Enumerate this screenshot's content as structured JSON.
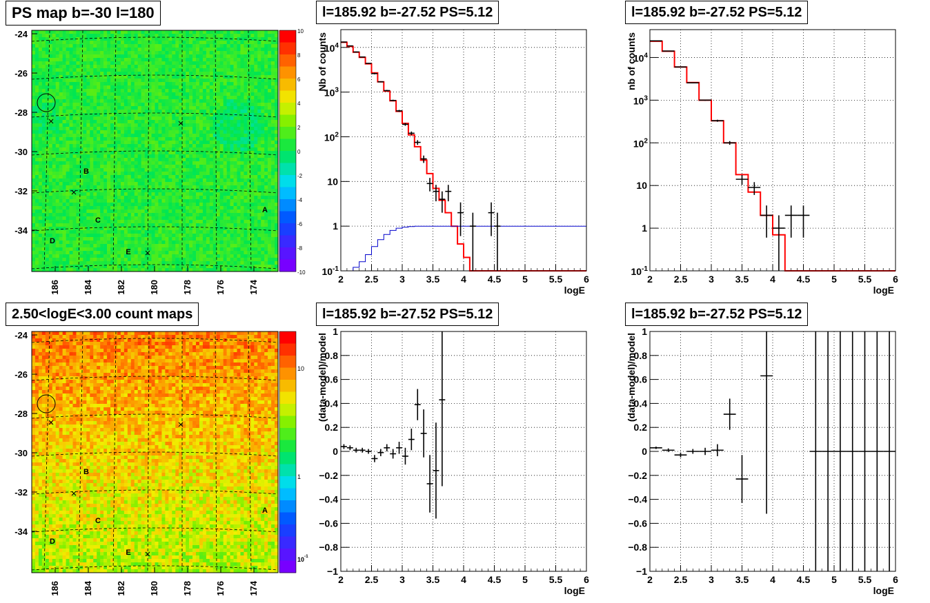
{
  "panels": {
    "map_ps_title": "PS map b=-30 l=180",
    "map_counts_title": "2.50<logE<3.00 count maps",
    "spec1_title": "l=185.92 b=-27.52 PS=5.12",
    "spec2_title": "l=185.92 b=-27.52 PS=5.12",
    "res1_title": "l=185.92 b=-27.52 PS=5.12",
    "res2_title": "l=185.92 b=-27.52 PS=5.12"
  },
  "colors": {
    "model": "#ff0000",
    "background_model": "#0000cc",
    "data": "#000000",
    "grid": "#000000"
  },
  "chart_data": [
    {
      "id": "ps_map",
      "type": "heatmap",
      "title": "PS map b=-30 l=180",
      "colorscale": "rainbow",
      "x_tick_labels": [
        "186",
        "184",
        "182",
        "180",
        "178",
        "176",
        "174"
      ],
      "y_tick_labels": [
        "-24",
        "-26",
        "-28",
        "-30",
        "-32",
        "-34"
      ],
      "colorbar_labels": [
        "10",
        "8",
        "6",
        "4",
        "2",
        "0",
        "-2",
        "-4",
        "-6",
        "-8",
        "-10"
      ],
      "colorbar_range": [
        -10,
        10
      ],
      "source_labels": [
        "A",
        "B",
        "C",
        "D",
        "E"
      ],
      "markers": [
        "x",
        "x",
        "x",
        "x"
      ],
      "circled_source": "l=185.92 b=-27.52"
    },
    {
      "id": "count_map",
      "type": "heatmap",
      "title": "2.50<logE<3.00 count maps",
      "colorscale": "rainbow-log",
      "x_tick_labels": [
        "186",
        "184",
        "182",
        "180",
        "178",
        "176",
        "174"
      ],
      "y_tick_labels": [
        "-24",
        "-26",
        "-28",
        "-30",
        "-32",
        "-34"
      ],
      "colorbar_labels": [
        "10",
        "1"
      ],
      "colorbar_minor_label": {
        "base": "10",
        "exp": "-1"
      },
      "source_labels": [
        "A",
        "B",
        "C",
        "D",
        "E"
      ]
    },
    {
      "id": "spectrum_fine",
      "type": "line",
      "title": "l=185.92 b=-27.52 PS=5.12",
      "xlabel": "logE",
      "ylabel": "Nb of counts",
      "xlim": [
        2,
        6
      ],
      "ylog": true,
      "ylim": [
        0.1,
        25000
      ],
      "x_ticks": [
        "2",
        "2.5",
        "3",
        "3.5",
        "4",
        "4.5",
        "5",
        "5.5",
        "6"
      ],
      "y_ticks": [
        {
          "value": 0.1,
          "base": "10",
          "exp": "-1"
        },
        {
          "value": 1,
          "label": "1"
        },
        {
          "value": 10,
          "label": "10"
        },
        {
          "value": 100,
          "base": "10",
          "exp": "2"
        },
        {
          "value": 1000,
          "base": "10",
          "exp": "3"
        },
        {
          "value": 10000,
          "base": "10",
          "exp": "4"
        }
      ],
      "model_edges": [
        2,
        2.1,
        2.2,
        2.3,
        2.4,
        2.5,
        2.6,
        2.7,
        2.8,
        2.9,
        3,
        3.1,
        3.2,
        3.3,
        3.4,
        3.5,
        3.6,
        3.7,
        3.8,
        3.9,
        4,
        4.1,
        4.2,
        4.3,
        4.4,
        4.5,
        4.6,
        4.7,
        4.8,
        4.9,
        5,
        5.1,
        5.2,
        5.3,
        5.4,
        5.5,
        5.6,
        5.7,
        5.8,
        5.9,
        6
      ],
      "model_values": [
        13000,
        10500,
        7800,
        6000,
        4300,
        2700,
        1700,
        1050,
        640,
        370,
        200,
        110,
        60,
        30,
        15,
        7,
        3.8,
        2,
        1,
        0.4,
        0.2,
        0.1,
        0.1,
        0.1,
        0.1,
        0.1,
        0.1,
        0.1,
        0.1,
        0.1,
        0.1,
        0.1,
        0.1,
        0.1,
        0.1,
        0.1,
        0.1,
        0.1,
        0.1,
        0.1
      ],
      "background_values": [
        0.1,
        0.1,
        0.12,
        0.16,
        0.23,
        0.35,
        0.5,
        0.65,
        0.8,
        0.9,
        0.95,
        0.98,
        1,
        1,
        1,
        1,
        1,
        1,
        1,
        1,
        1,
        1,
        1,
        1,
        1,
        1,
        1,
        1,
        1,
        1,
        1,
        1,
        1,
        1,
        1,
        1,
        1,
        1,
        1,
        1
      ],
      "data_points": [
        {
          "x": 2.05,
          "y": 13200,
          "lo": 12900,
          "hi": 13500
        },
        {
          "x": 2.15,
          "y": 10800,
          "lo": 10600,
          "hi": 11000
        },
        {
          "x": 2.25,
          "y": 7900,
          "lo": 7700,
          "hi": 8100
        },
        {
          "x": 2.35,
          "y": 6100,
          "lo": 5950,
          "hi": 6250
        },
        {
          "x": 2.45,
          "y": 4400,
          "lo": 4300,
          "hi": 4500
        },
        {
          "x": 2.55,
          "y": 2600,
          "lo": 2500,
          "hi": 2700
        },
        {
          "x": 2.65,
          "y": 1700,
          "lo": 1650,
          "hi": 1750
        },
        {
          "x": 2.75,
          "y": 1080,
          "lo": 1040,
          "hi": 1120
        },
        {
          "x": 2.85,
          "y": 650,
          "lo": 625,
          "hi": 675
        },
        {
          "x": 2.95,
          "y": 380,
          "lo": 360,
          "hi": 400
        },
        {
          "x": 3.05,
          "y": 190,
          "lo": 176,
          "hi": 204
        },
        {
          "x": 3.15,
          "y": 120,
          "lo": 109,
          "hi": 131
        },
        {
          "x": 3.25,
          "y": 75,
          "lo": 66,
          "hi": 84
        },
        {
          "x": 3.35,
          "y": 32,
          "lo": 26,
          "hi": 38
        },
        {
          "x": 3.45,
          "y": 9,
          "lo": 6,
          "hi": 12
        },
        {
          "x": 3.55,
          "y": 6,
          "lo": 3.6,
          "hi": 8.4
        },
        {
          "x": 3.65,
          "y": 4,
          "lo": 2,
          "hi": 6
        },
        {
          "x": 3.75,
          "y": 6,
          "lo": 3.6,
          "hi": 8.4
        },
        {
          "x": 3.95,
          "y": 2,
          "lo": 0.6,
          "hi": 3.4
        },
        {
          "x": 4.15,
          "y": 1,
          "lo": 0.1,
          "hi": 2
        },
        {
          "x": 4.45,
          "y": 2,
          "lo": 0.6,
          "hi": 3.4
        },
        {
          "x": 4.55,
          "y": 1,
          "lo": 0.1,
          "hi": 2
        }
      ],
      "data_binwidth": 0.1
    },
    {
      "id": "spectrum_coarse",
      "type": "line",
      "title": "l=185.92 b=-27.52 PS=5.12",
      "xlabel": "logE",
      "ylabel": "nb of counts",
      "xlim": [
        2,
        6
      ],
      "ylog": true,
      "ylim": [
        0.1,
        45000
      ],
      "x_ticks": [
        "2",
        "2.5",
        "3",
        "3.5",
        "4",
        "4.5",
        "5",
        "5.5",
        "6"
      ],
      "y_ticks": [
        {
          "value": 0.1,
          "base": "10",
          "exp": "-1"
        },
        {
          "value": 1,
          "label": "1"
        },
        {
          "value": 10,
          "label": "10"
        },
        {
          "value": 100,
          "base": "10",
          "exp": "2"
        },
        {
          "value": 1000,
          "base": "10",
          "exp": "3"
        },
        {
          "value": 10000,
          "base": "10",
          "exp": "4"
        }
      ],
      "model_edges": [
        2,
        2.2,
        2.4,
        2.6,
        2.8,
        3,
        3.2,
        3.4,
        3.6,
        3.8,
        4,
        4.2,
        4.4,
        4.6,
        4.8,
        5,
        5.2,
        5.4,
        5.6,
        5.8,
        6
      ],
      "model_values": [
        24000,
        14000,
        6000,
        2600,
        1000,
        330,
        100,
        18,
        7,
        2,
        0.7,
        0.1,
        0.1,
        0.1,
        0.1,
        0.1,
        0.1,
        0.1,
        0.1,
        0.1
      ],
      "data_points": [
        {
          "x": 2.1,
          "y": 24500,
          "lo": 24200,
          "hi": 24800
        },
        {
          "x": 2.3,
          "y": 14200,
          "lo": 14000,
          "hi": 14400
        },
        {
          "x": 2.5,
          "y": 6000,
          "lo": 5900,
          "hi": 6100
        },
        {
          "x": 2.7,
          "y": 2550,
          "lo": 2500,
          "hi": 2600
        },
        {
          "x": 2.9,
          "y": 1000,
          "lo": 968,
          "hi": 1032
        },
        {
          "x": 3.1,
          "y": 330,
          "lo": 312,
          "hi": 348
        },
        {
          "x": 3.3,
          "y": 100,
          "lo": 90,
          "hi": 110
        },
        {
          "x": 3.5,
          "y": 14,
          "lo": 10.3,
          "hi": 17.7
        },
        {
          "x": 3.7,
          "y": 9,
          "lo": 6,
          "hi": 12
        },
        {
          "x": 3.9,
          "y": 2,
          "lo": 0.6,
          "hi": 3.4
        },
        {
          "x": 4.1,
          "y": 1,
          "lo": 0.1,
          "hi": 2
        },
        {
          "x": 4.3,
          "y": 2,
          "lo": 0.6,
          "hi": 3.4
        },
        {
          "x": 4.5,
          "y": 2,
          "lo": 0.6,
          "hi": 3.4
        }
      ],
      "data_binwidth": 0.2
    },
    {
      "id": "residual_fine",
      "type": "scatter",
      "title": "l=185.92 b=-27.52 PS=5.12",
      "xlabel": "logE",
      "ylabel": "(data-model)/model",
      "xlim": [
        2,
        6
      ],
      "ylim": [
        -1,
        1
      ],
      "x_ticks": [
        "2",
        "2.5",
        "3",
        "3.5",
        "4",
        "4.5",
        "5",
        "5.5",
        "6"
      ],
      "y_ticks": [
        "1",
        "0.8",
        "0.6",
        "0.4",
        "0.2",
        "0",
        "-0.2",
        "-0.4",
        "-0.6",
        "-0.8",
        "-1"
      ],
      "data_points": [
        {
          "x": 2.05,
          "y": 0.04,
          "err": 0.02
        },
        {
          "x": 2.15,
          "y": 0.03,
          "err": 0.02
        },
        {
          "x": 2.25,
          "y": 0.01,
          "err": 0.02
        },
        {
          "x": 2.35,
          "y": 0.01,
          "err": 0.02
        },
        {
          "x": 2.45,
          "y": 0.0,
          "err": 0.02
        },
        {
          "x": 2.55,
          "y": -0.06,
          "err": 0.03
        },
        {
          "x": 2.65,
          "y": -0.01,
          "err": 0.03
        },
        {
          "x": 2.75,
          "y": 0.03,
          "err": 0.03
        },
        {
          "x": 2.85,
          "y": -0.02,
          "err": 0.04
        },
        {
          "x": 2.95,
          "y": 0.03,
          "err": 0.05
        },
        {
          "x": 3.05,
          "y": -0.04,
          "err": 0.07
        },
        {
          "x": 3.15,
          "y": 0.1,
          "err": 0.09
        },
        {
          "x": 3.25,
          "y": 0.39,
          "err": 0.13
        },
        {
          "x": 3.35,
          "y": 0.15,
          "err": 0.2
        },
        {
          "x": 3.45,
          "y": -0.27,
          "err": 0.24
        },
        {
          "x": 3.55,
          "y": -0.16,
          "err": 0.4
        },
        {
          "x": 3.65,
          "y": 0.43,
          "err": 0.72
        }
      ],
      "data_binwidth": 0.1
    },
    {
      "id": "residual_coarse",
      "type": "scatter",
      "title": "l=185.92 b=-27.52 PS=5.12",
      "xlabel": "logE",
      "ylabel": "(data-model)/model",
      "xlim": [
        2,
        6
      ],
      "ylim": [
        -1,
        1
      ],
      "x_ticks": [
        "2",
        "2.5",
        "3",
        "3.5",
        "4",
        "4.5",
        "5",
        "5.5",
        "6"
      ],
      "y_ticks": [
        "1",
        "0.8",
        "0.6",
        "0.4",
        "0.2",
        "0",
        "-0.2",
        "-0.4",
        "-0.6",
        "-0.8",
        "-1"
      ],
      "data_points": [
        {
          "x": 2.1,
          "y": 0.03,
          "err": 0.01
        },
        {
          "x": 2.3,
          "y": 0.01,
          "err": 0.015
        },
        {
          "x": 2.5,
          "y": -0.03,
          "err": 0.02
        },
        {
          "x": 2.7,
          "y": 0.0,
          "err": 0.02
        },
        {
          "x": 2.9,
          "y": 0.0,
          "err": 0.03
        },
        {
          "x": 3.1,
          "y": 0.01,
          "err": 0.05
        },
        {
          "x": 3.3,
          "y": 0.31,
          "err": 0.13
        },
        {
          "x": 3.5,
          "y": -0.23,
          "err": 0.2
        },
        {
          "x": 3.9,
          "y": 0.63,
          "err": 1.15
        },
        {
          "x": 4.7,
          "y": 0,
          "err": 1.5
        },
        {
          "x": 4.9,
          "y": 0,
          "err": 1.5
        },
        {
          "x": 5.1,
          "y": 0,
          "err": 1.5
        },
        {
          "x": 5.3,
          "y": 0,
          "err": 1.5
        },
        {
          "x": 5.5,
          "y": 0,
          "err": 1.5
        },
        {
          "x": 5.7,
          "y": 0,
          "err": 1.5
        },
        {
          "x": 5.9,
          "y": 0,
          "err": 1.5
        }
      ],
      "data_binwidth": 0.2
    }
  ]
}
